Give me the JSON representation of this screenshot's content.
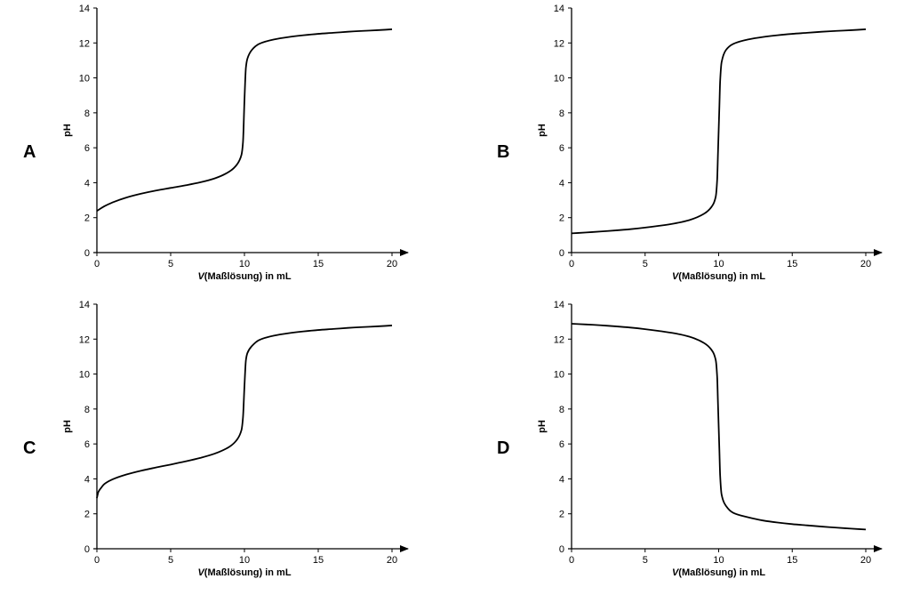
{
  "chart_data": [
    {
      "type": "line",
      "panel_label": "A",
      "xlabel_italic": "V",
      "xlabel_rest": "(Maßlösung) in mL",
      "ylabel": "pH",
      "xlim": [
        0,
        20
      ],
      "ylim": [
        0,
        14
      ],
      "xticks": [
        0,
        5,
        10,
        15,
        20
      ],
      "yticks": [
        0,
        2,
        4,
        6,
        8,
        10,
        12,
        14
      ],
      "grid": false,
      "series": [
        {
          "x": [
            0,
            0.5,
            1,
            2,
            3,
            4,
            5,
            6,
            7,
            8,
            9,
            9.5,
            9.8,
            9.9,
            10,
            10.1,
            10.2,
            10.5,
            11,
            12,
            13,
            14,
            15,
            16,
            17,
            18,
            19,
            20
          ],
          "y": [
            2.38,
            2.65,
            2.85,
            3.15,
            3.37,
            3.55,
            3.7,
            3.85,
            4.02,
            4.25,
            4.65,
            5.05,
            5.6,
            6.3,
            8.7,
            10.6,
            11.1,
            11.6,
            11.95,
            12.2,
            12.34,
            12.44,
            12.52,
            12.58,
            12.64,
            12.69,
            12.73,
            12.78
          ]
        }
      ]
    },
    {
      "type": "line",
      "panel_label": "B",
      "xlabel_italic": "V",
      "xlabel_rest": "(Maßlösung) in mL",
      "ylabel": "pH",
      "xlim": [
        0,
        20
      ],
      "ylim": [
        0,
        14
      ],
      "xticks": [
        0,
        5,
        10,
        15,
        20
      ],
      "yticks": [
        0,
        2,
        4,
        6,
        8,
        10,
        12,
        14
      ],
      "grid": false,
      "series": [
        {
          "x": [
            0,
            1,
            2,
            3,
            4,
            5,
            6,
            7,
            8,
            9,
            9.5,
            9.8,
            9.9,
            9.95,
            10,
            10.05,
            10.1,
            10.2,
            10.5,
            11,
            12,
            13,
            14,
            15,
            16,
            17,
            18,
            19,
            20
          ],
          "y": [
            1.1,
            1.15,
            1.21,
            1.27,
            1.34,
            1.43,
            1.54,
            1.67,
            1.86,
            2.22,
            2.6,
            3.2,
            4.2,
            5.6,
            7.0,
            8.4,
            9.8,
            10.9,
            11.6,
            11.95,
            12.2,
            12.34,
            12.44,
            12.52,
            12.58,
            12.64,
            12.69,
            12.73,
            12.78
          ]
        }
      ]
    },
    {
      "type": "line",
      "panel_label": "C",
      "xlabel_italic": "V",
      "xlabel_rest": "(Maßlösung) in mL",
      "ylabel": "pH",
      "xlim": [
        0,
        20
      ],
      "ylim": [
        0,
        14
      ],
      "xticks": [
        0,
        5,
        10,
        15,
        20
      ],
      "yticks": [
        0,
        2,
        4,
        6,
        8,
        10,
        12,
        14
      ],
      "grid": false,
      "series": [
        {
          "x": [
            0,
            0.1,
            0.3,
            0.5,
            1,
            2,
            3,
            4,
            5,
            6,
            7,
            8,
            9,
            9.5,
            9.8,
            9.9,
            10,
            10.1,
            10.2,
            10.5,
            11,
            12,
            13,
            14,
            15,
            16,
            17,
            18,
            19,
            20
          ],
          "y": [
            2.9,
            3.25,
            3.5,
            3.7,
            3.95,
            4.25,
            4.47,
            4.65,
            4.82,
            5.0,
            5.2,
            5.45,
            5.85,
            6.25,
            6.8,
            7.5,
            9.3,
            10.8,
            11.2,
            11.6,
            11.95,
            12.2,
            12.34,
            12.44,
            12.52,
            12.58,
            12.64,
            12.69,
            12.73,
            12.78
          ]
        }
      ]
    },
    {
      "type": "line",
      "panel_label": "D",
      "xlabel_italic": "V",
      "xlabel_rest": "(Maßlösung) in mL",
      "ylabel": "pH",
      "xlim": [
        0,
        20
      ],
      "ylim": [
        0,
        14
      ],
      "xticks": [
        0,
        5,
        10,
        15,
        20
      ],
      "yticks": [
        0,
        2,
        4,
        6,
        8,
        10,
        12,
        14
      ],
      "grid": false,
      "series": [
        {
          "x": [
            0,
            1,
            2,
            3,
            4,
            5,
            6,
            7,
            8,
            9,
            9.5,
            9.8,
            9.9,
            9.95,
            10,
            10.05,
            10.1,
            10.2,
            10.5,
            11,
            12,
            13,
            14,
            15,
            16,
            17,
            18,
            19,
            20
          ],
          "y": [
            12.88,
            12.84,
            12.79,
            12.73,
            12.66,
            12.57,
            12.46,
            12.33,
            12.14,
            11.78,
            11.4,
            10.8,
            9.8,
            8.4,
            7.0,
            5.6,
            4.2,
            3.1,
            2.45,
            2.05,
            1.8,
            1.62,
            1.5,
            1.41,
            1.34,
            1.27,
            1.21,
            1.15,
            1.1
          ]
        }
      ]
    }
  ]
}
